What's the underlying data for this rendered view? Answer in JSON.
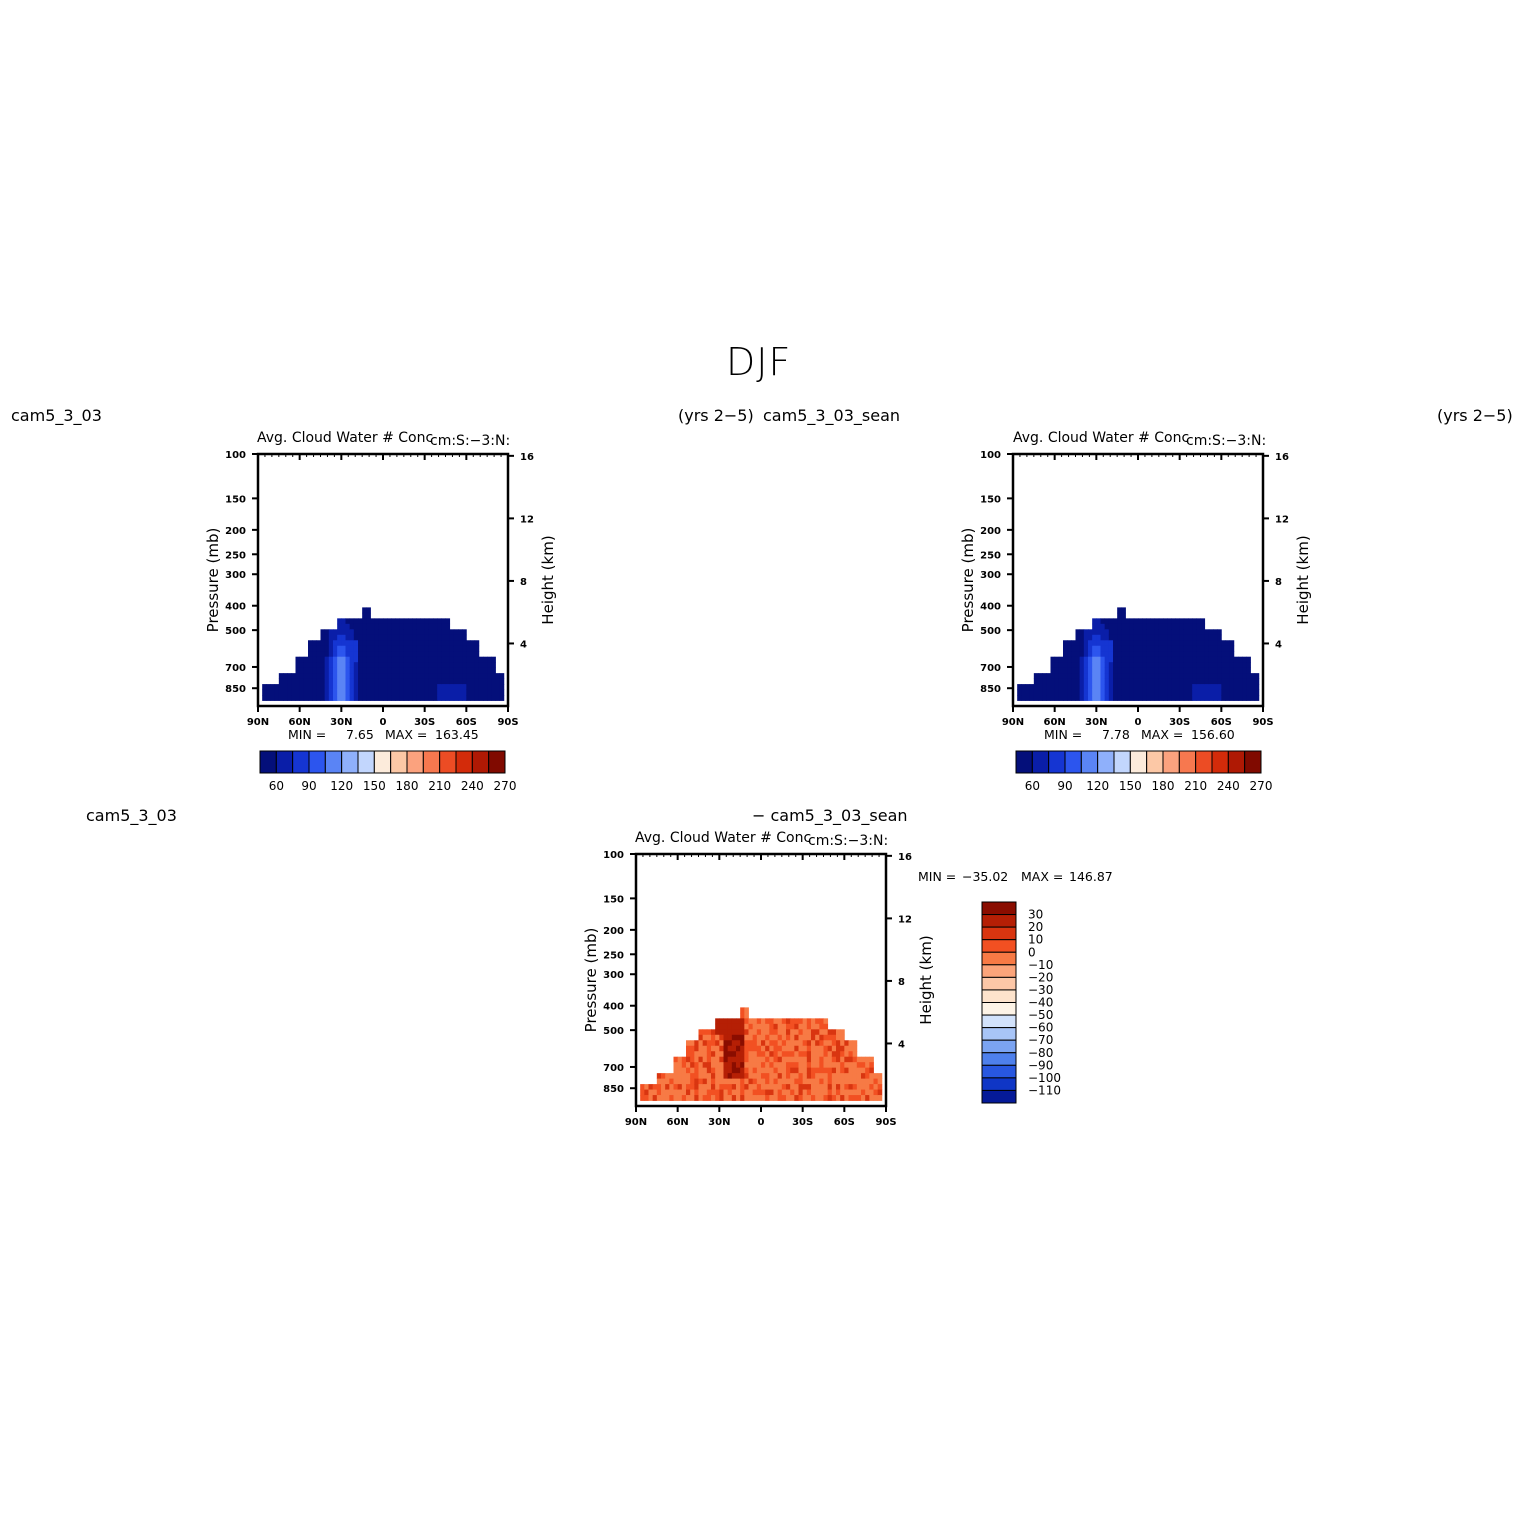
{
  "figure": {
    "title": "DJF",
    "left_case": "cam5_3_03",
    "left_years": "(yrs 2−5)",
    "right_case": "cam5_3_03_sean",
    "right_years": "(yrs 2−5)",
    "diff_left_case": "cam5_3_03",
    "diff_right_case": "− cam5_3_03_sean"
  },
  "chart_data": [
    {
      "id": "panel-1",
      "type": "heatmap",
      "title": "Avg. Cloud Water # Conc",
      "units": "cm:S:−3:N:",
      "ylabel": "Pressure (mb)",
      "ylabel_right": "Height (km)",
      "y_ticks": [
        "100",
        "150",
        "200",
        "250",
        "300",
        "400",
        "500",
        "700",
        "850"
      ],
      "y_right_ticks": [
        "16",
        "12",
        "8",
        "4"
      ],
      "x_ticks": [
        "90N",
        "60N",
        "30N",
        "0",
        "30S",
        "60S",
        "90S"
      ],
      "min_label": "MIN =",
      "min_value": "7.65",
      "max_label": "MAX =",
      "max_value": "163.45",
      "colorbar_labels": [
        "60",
        "90",
        "120",
        "150",
        "180",
        "210",
        "240",
        "270"
      ],
      "colorbar_colors": [
        "#040f7a",
        "#0a1ea8",
        "#1535d2",
        "#2c55ee",
        "#5a84f5",
        "#8fb0fb",
        "#c2d6fd",
        "#fcebdb",
        "#fcc8a6",
        "#fba27e",
        "#f7784f",
        "#ec4c24",
        "#d32b0a",
        "#af1904",
        "#800a00"
      ]
    },
    {
      "id": "panel-2",
      "type": "heatmap",
      "title": "Avg. Cloud Water # Conc",
      "units": "cm:S:−3:N:",
      "ylabel": "Pressure (mb)",
      "ylabel_right": "Height (km)",
      "y_ticks": [
        "100",
        "150",
        "200",
        "250",
        "300",
        "400",
        "500",
        "700",
        "850"
      ],
      "y_right_ticks": [
        "16",
        "12",
        "8",
        "4"
      ],
      "x_ticks": [
        "90N",
        "60N",
        "30N",
        "0",
        "30S",
        "60S",
        "90S"
      ],
      "min_label": "MIN =",
      "min_value": "7.78",
      "max_label": "MAX =",
      "max_value": "156.60",
      "colorbar_labels": [
        "60",
        "90",
        "120",
        "150",
        "180",
        "210",
        "240",
        "270"
      ],
      "colorbar_colors": [
        "#040f7a",
        "#0a1ea8",
        "#1535d2",
        "#2c55ee",
        "#5a84f5",
        "#8fb0fb",
        "#c2d6fd",
        "#fcebdb",
        "#fcc8a6",
        "#fba27e",
        "#f7784f",
        "#ec4c24",
        "#d32b0a",
        "#af1904",
        "#800a00"
      ]
    },
    {
      "id": "panel-diff",
      "type": "heatmap",
      "title": "Avg. Cloud Water # Conc",
      "units": "cm:S:−3:N:",
      "ylabel": "Pressure (mb)",
      "ylabel_right": "Height (km)",
      "y_ticks": [
        "100",
        "150",
        "200",
        "250",
        "300",
        "400",
        "500",
        "700",
        "850"
      ],
      "y_right_ticks": [
        "16",
        "12",
        "8",
        "4"
      ],
      "x_ticks": [
        "90N",
        "60N",
        "30N",
        "0",
        "30S",
        "60S",
        "90S"
      ],
      "min_label": "MIN =",
      "min_value": "−35.02",
      "max_label": "MAX =",
      "max_value": "146.87",
      "colorbar_labels": [
        "30",
        "20",
        "10",
        "0",
        "−10",
        "−20",
        "−30",
        "−40",
        "−50",
        "−60",
        "−70",
        "−80",
        "−90",
        "−100",
        "−110"
      ],
      "colorbar_colors": [
        "#8a0d00",
        "#b51f05",
        "#d93510",
        "#f25022",
        "#f77a45",
        "#fba47a",
        "#fcc7a7",
        "#fde3cc",
        "#fdf3e6",
        "#d2e2fb",
        "#a8c5f7",
        "#7ba4f2",
        "#4e80ec",
        "#2857e0",
        "#0f36c6",
        "#051a98"
      ]
    }
  ]
}
